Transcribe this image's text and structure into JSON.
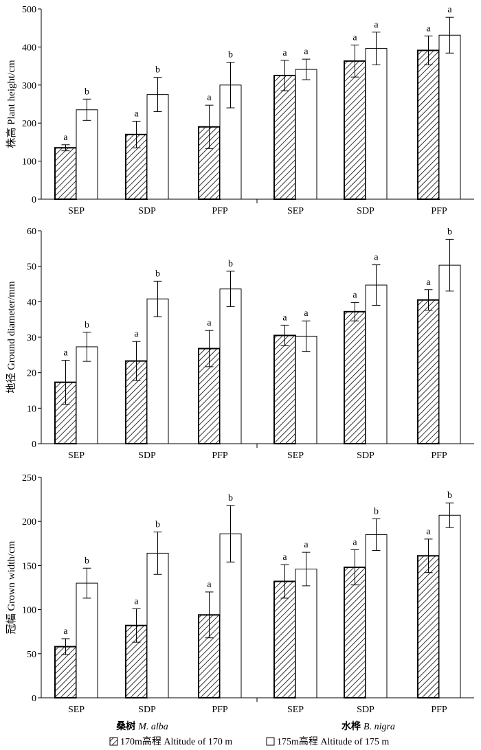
{
  "chart_data": [
    {
      "type": "bar",
      "ylabel": "株高 Plant height/cm",
      "ylim": [
        0,
        500
      ],
      "yticks": [
        0,
        100,
        200,
        300,
        400,
        500
      ],
      "groups": [
        {
          "name": "桑树 M. alba",
          "categories": [
            "SEP",
            "SDP",
            "PFP"
          ],
          "series": [
            {
              "name": "170m高程 Altitude of 170 m",
              "values": [
                135,
                170,
                190
              ],
              "errors": [
                8,
                35,
                57
              ],
              "letters": [
                "a",
                "a",
                "a"
              ]
            },
            {
              "name": "175m高程 Altitude of 175 m",
              "values": [
                235,
                275,
                300
              ],
              "errors": [
                28,
                45,
                60
              ],
              "letters": [
                "b",
                "b",
                "b"
              ]
            }
          ]
        },
        {
          "name": "水桦 B. nigra",
          "categories": [
            "SEP",
            "SDP",
            "PFP"
          ],
          "series": [
            {
              "name": "170m高程 Altitude of 170 m",
              "values": [
                325,
                363,
                391
              ],
              "errors": [
                40,
                42,
                38
              ],
              "letters": [
                "a",
                "a",
                "a"
              ]
            },
            {
              "name": "175m高程 Altitude of 175 m",
              "values": [
                341,
                396,
                431
              ],
              "errors": [
                27,
                43,
                47
              ],
              "letters": [
                "a",
                "a",
                "a"
              ]
            }
          ]
        }
      ]
    },
    {
      "type": "bar",
      "ylabel": "地径 Ground diameter/mm",
      "ylim": [
        0,
        60
      ],
      "yticks": [
        0,
        10,
        20,
        30,
        40,
        50,
        60
      ],
      "groups": [
        {
          "name": "桑树 M. alba",
          "categories": [
            "SEP",
            "SDP",
            "PFP"
          ],
          "series": [
            {
              "name": "170m高程 Altitude of 170 m",
              "values": [
                17.3,
                23.3,
                26.8
              ],
              "errors": [
                6.2,
                5.5,
                5.1
              ],
              "letters": [
                "a",
                "a",
                "a"
              ]
            },
            {
              "name": "175m高程 Altitude of 175 m",
              "values": [
                27.3,
                40.8,
                43.6
              ],
              "errors": [
                4.1,
                5.0,
                5.0
              ],
              "letters": [
                "b",
                "b",
                "b"
              ]
            }
          ]
        },
        {
          "name": "水桦 B. nigra",
          "categories": [
            "SEP",
            "SDP",
            "PFP"
          ],
          "series": [
            {
              "name": "170m高程 Altitude of 170 m",
              "values": [
                30.5,
                37.2,
                40.5
              ],
              "errors": [
                2.9,
                2.6,
                2.9
              ],
              "letters": [
                "a",
                "a",
                "a"
              ]
            },
            {
              "name": "175m高程 Altitude of 175 m",
              "values": [
                30.3,
                44.7,
                50.3
              ],
              "errors": [
                4.3,
                5.7,
                7.3
              ],
              "letters": [
                "a",
                "a",
                "b"
              ]
            }
          ]
        }
      ]
    },
    {
      "type": "bar",
      "ylabel": "冠幅 Grown width/cm",
      "ylim": [
        0,
        250
      ],
      "yticks": [
        0,
        50,
        100,
        150,
        200,
        250
      ],
      "groups": [
        {
          "name": "桑树 M. alba",
          "categories": [
            "SEP",
            "SDP",
            "PFP"
          ],
          "series": [
            {
              "name": "170m高程 Altitude of 170 m",
              "values": [
                58,
                82,
                94
              ],
              "errors": [
                9,
                19,
                26
              ],
              "letters": [
                "a",
                "a",
                "a"
              ]
            },
            {
              "name": "175m高程 Altitude of 175 m",
              "values": [
                130,
                164,
                186
              ],
              "errors": [
                17,
                24,
                32
              ],
              "letters": [
                "b",
                "b",
                "b"
              ]
            }
          ]
        },
        {
          "name": "水桦 B. nigra",
          "categories": [
            "SEP",
            "SDP",
            "PFP"
          ],
          "series": [
            {
              "name": "170m高程 Altitude of 170 m",
              "values": [
                132,
                148,
                161
              ],
              "errors": [
                19,
                20,
                19
              ],
              "letters": [
                "a",
                "a",
                "a"
              ]
            },
            {
              "name": "175m高程 Altitude of 175 m",
              "values": [
                146,
                185,
                207
              ],
              "errors": [
                19,
                18,
                14
              ],
              "letters": [
                "a",
                "b",
                "b"
              ]
            }
          ]
        }
      ]
    }
  ],
  "group_labels": [
    {
      "zh": "桑树",
      "latin": "M. alba"
    },
    {
      "zh": "水桦",
      "latin": "B. nigra"
    }
  ],
  "legend": [
    {
      "label": "170m高程 Altitude of 170 m",
      "pattern": "hatched"
    },
    {
      "label": "175m高程 Altitude of 175 m",
      "pattern": "open"
    }
  ],
  "colors": {
    "ink": "#000000",
    "open_fill": "#ffffff"
  }
}
